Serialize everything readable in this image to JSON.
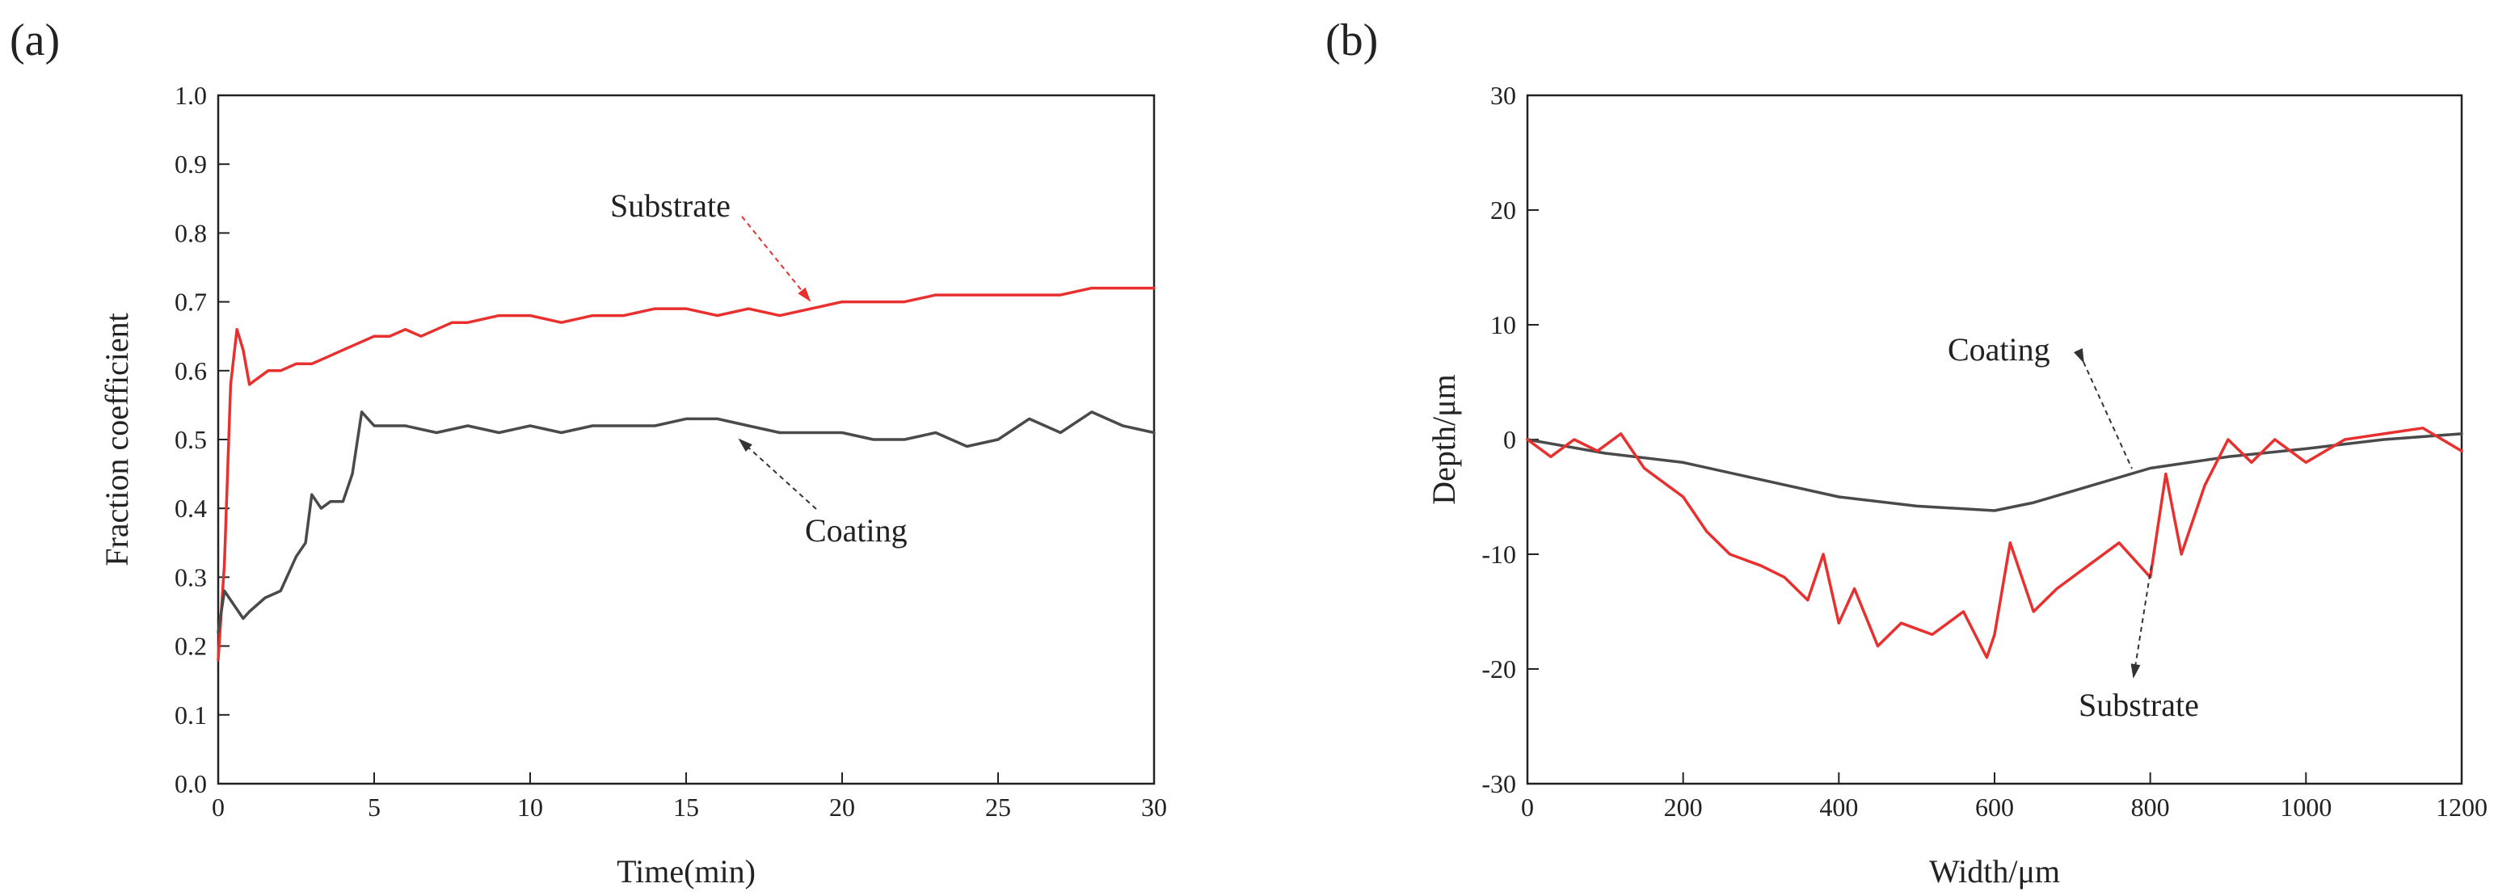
{
  "chart_data": [
    {
      "panel_label": "(a)",
      "type": "line",
      "xlabel": "Time(min)",
      "ylabel": "Fraction coefficient",
      "xlim": [
        0,
        30
      ],
      "ylim": [
        0,
        1.0
      ],
      "xticks": [
        "0",
        "5",
        "10",
        "15",
        "20",
        "25",
        "30"
      ],
      "yticks": [
        "0.0",
        "0.1",
        "0.2",
        "0.3",
        "0.4",
        "0.5",
        "0.6",
        "0.7",
        "0.8",
        "0.9",
        "1.0"
      ],
      "grid": false,
      "series": [
        {
          "name": "Substrate",
          "color": "#e8302f",
          "x": [
            0,
            0.2,
            0.4,
            0.6,
            0.8,
            1.0,
            1.3,
            1.6,
            2,
            2.5,
            3,
            3.5,
            4,
            4.5,
            5,
            5.5,
            6,
            6.5,
            7,
            7.5,
            8,
            9,
            10,
            11,
            12,
            13,
            14,
            15,
            16,
            17,
            18,
            19,
            20,
            21,
            22,
            23,
            24,
            25,
            26,
            27,
            28,
            29,
            30
          ],
          "y": [
            0.18,
            0.32,
            0.58,
            0.66,
            0.63,
            0.58,
            0.59,
            0.6,
            0.6,
            0.61,
            0.61,
            0.62,
            0.63,
            0.64,
            0.65,
            0.65,
            0.66,
            0.65,
            0.66,
            0.67,
            0.67,
            0.68,
            0.68,
            0.67,
            0.68,
            0.68,
            0.69,
            0.69,
            0.68,
            0.69,
            0.68,
            0.69,
            0.7,
            0.7,
            0.7,
            0.71,
            0.71,
            0.71,
            0.71,
            0.71,
            0.72,
            0.72,
            0.72
          ]
        },
        {
          "name": "Coating",
          "color": "#4a4a4a",
          "x": [
            0,
            0.2,
            0.5,
            0.8,
            1.0,
            1.5,
            2.0,
            2.5,
            2.8,
            3.0,
            3.3,
            3.6,
            4.0,
            4.3,
            4.6,
            5,
            6,
            7,
            8,
            9,
            10,
            11,
            12,
            13,
            14,
            15,
            16,
            17,
            18,
            19,
            20,
            21,
            22,
            23,
            24,
            25,
            26,
            27,
            28,
            29,
            30
          ],
          "y": [
            0.22,
            0.28,
            0.26,
            0.24,
            0.25,
            0.27,
            0.28,
            0.33,
            0.35,
            0.42,
            0.4,
            0.41,
            0.41,
            0.45,
            0.54,
            0.52,
            0.52,
            0.51,
            0.52,
            0.51,
            0.52,
            0.51,
            0.52,
            0.52,
            0.52,
            0.53,
            0.53,
            0.52,
            0.51,
            0.51,
            0.51,
            0.5,
            0.5,
            0.51,
            0.49,
            0.5,
            0.53,
            0.51,
            0.54,
            0.52,
            0.51
          ]
        }
      ],
      "annotations": [
        {
          "text": "Substrate",
          "target_series": "Substrate"
        },
        {
          "text": "Coating",
          "target_series": "Coating"
        }
      ]
    },
    {
      "panel_label": "(b)",
      "type": "line",
      "xlabel": "Width/μm",
      "ylabel": "Depth/μm",
      "xlim": [
        0,
        1200
      ],
      "ylim": [
        -30,
        30
      ],
      "xticks": [
        "0",
        "200",
        "400",
        "600",
        "800",
        "1000",
        "1200"
      ],
      "yticks": [
        "-30",
        "-20",
        "-10",
        "0",
        "10",
        "20",
        "30"
      ],
      "grid": false,
      "series": [
        {
          "name": "Coating",
          "color": "#4a4a4a",
          "x": [
            0,
            100,
            200,
            300,
            400,
            500,
            600,
            650,
            700,
            800,
            900,
            1000,
            1100,
            1200
          ],
          "y": [
            0,
            -1.2,
            -2,
            -3.5,
            -5,
            -5.8,
            -6.2,
            -5.5,
            -4.5,
            -2.5,
            -1.5,
            -0.8,
            0,
            0.5
          ]
        },
        {
          "name": "Substrate",
          "color": "#e8302f",
          "x": [
            0,
            30,
            60,
            90,
            120,
            150,
            180,
            200,
            230,
            260,
            300,
            330,
            360,
            380,
            400,
            420,
            450,
            480,
            520,
            560,
            590,
            600,
            620,
            650,
            680,
            720,
            760,
            800,
            820,
            840,
            870,
            900,
            930,
            960,
            1000,
            1050,
            1100,
            1150,
            1200
          ],
          "y": [
            0,
            -1.5,
            0,
            -1,
            0.5,
            -2.5,
            -4,
            -5,
            -8,
            -10,
            -11,
            -12,
            -14,
            -10,
            -16,
            -13,
            -18,
            -16,
            -17,
            -15,
            -19,
            -17,
            -9,
            -15,
            -13,
            -11,
            -9,
            -12,
            -3,
            -10,
            -4,
            0,
            -2,
            0,
            -2,
            0,
            0.5,
            1,
            -1
          ]
        }
      ],
      "annotations": [
        {
          "text": "Coating",
          "target_series": "Coating"
        },
        {
          "text": "Substrate",
          "target_series": "Substrate"
        }
      ]
    }
  ]
}
